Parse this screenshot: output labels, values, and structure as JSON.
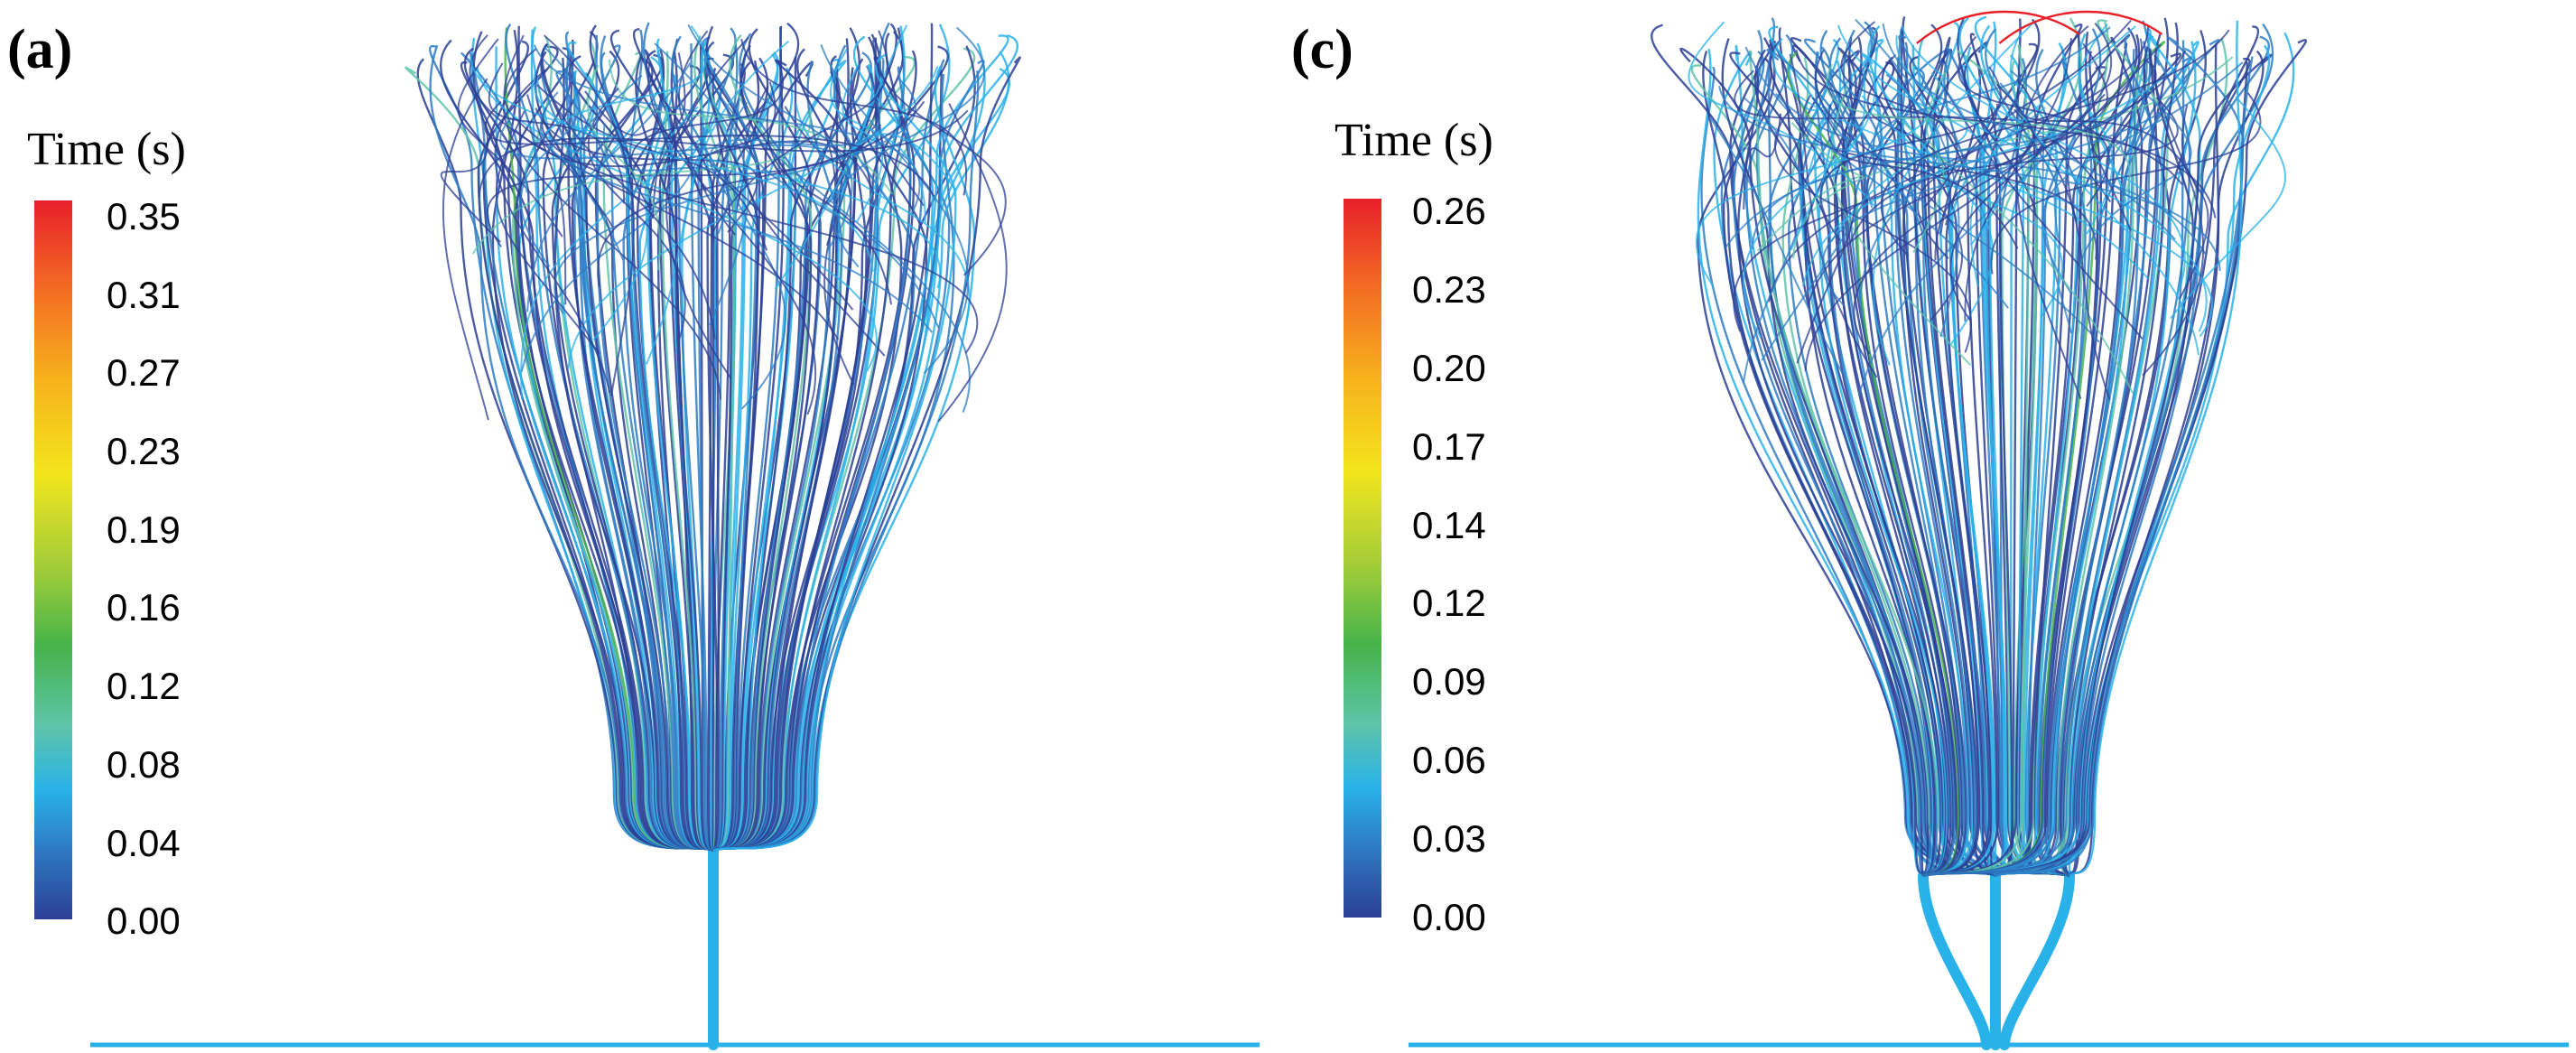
{
  "panels": [
    {
      "label": "(a)",
      "legend_title": "Time (s)",
      "ticks": [
        "0.35",
        "0.31",
        "0.27",
        "0.23",
        "0.19",
        "0.16",
        "0.12",
        "0.08",
        "0.04",
        "0.00"
      ],
      "nozzles": 1
    },
    {
      "label": "(c)",
      "legend_title": "Time (s)",
      "ticks": [
        "0.26",
        "0.23",
        "0.20",
        "0.17",
        "0.14",
        "0.12",
        "0.09",
        "0.06",
        "0.03",
        "0.00"
      ],
      "nozzles": 3
    }
  ],
  "colors": {
    "deep_blue": "#2c3f95",
    "blue": "#2e7cc4",
    "cyan": "#29b2ea",
    "teal": "#5fc4a8",
    "green": "#45b44a",
    "red": "#e8202a"
  }
}
